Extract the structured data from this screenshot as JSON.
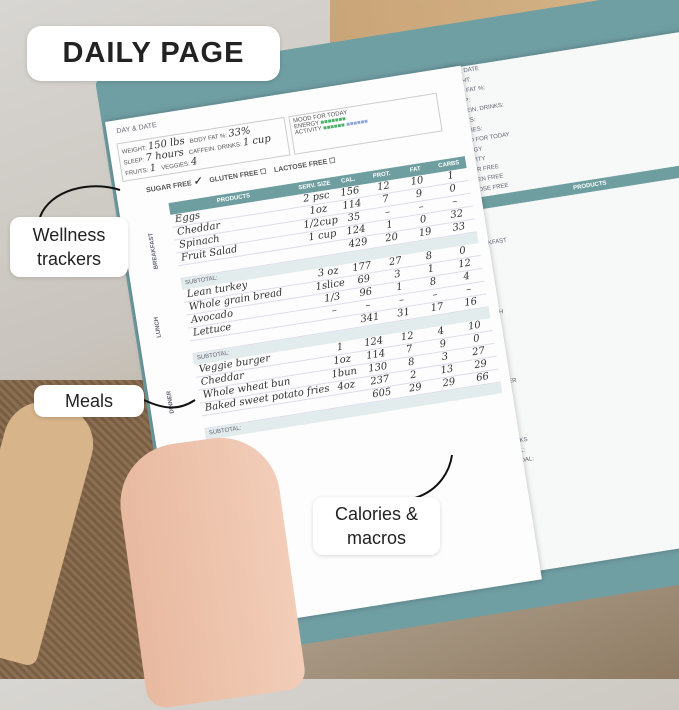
{
  "title": "DAILY PAGE",
  "callouts": {
    "wellness": "Wellness trackers",
    "meals": "Meals",
    "macros": "Calories & macros"
  },
  "planner": {
    "day_date": "DAY & DATE",
    "trackers": [
      {
        "label": "WEIGHT:",
        "value": "150 lbs"
      },
      {
        "label": "BODY FAT %:",
        "value": "33%"
      },
      {
        "label": "SLEEP:",
        "value": "7 hours"
      },
      {
        "label": "CAFFEIN. DRINKS:",
        "value": "1 cup"
      },
      {
        "label": "FRUITS:",
        "value": "1"
      },
      {
        "label": "VEGGIES:",
        "value": "4"
      }
    ],
    "mood": "MOOD FOR TODAY",
    "energy": "ENERGY",
    "activity": "ACTIVITY",
    "sugar_free": "SUGAR FREE",
    "gluten_free": "GLUTEN FREE",
    "lactose_free": "LACTOSE FREE",
    "check": "✓",
    "columns": [
      "PRODUCTS",
      "SERV. SIZE",
      "CAL.",
      "PROT.",
      "FAT",
      "CARBS"
    ],
    "meals": [
      {
        "name": "BREAKFAST",
        "rows": [
          [
            "Eggs",
            "2 psc",
            "156",
            "12",
            "10",
            "1"
          ],
          [
            "Cheddar",
            "1oz",
            "114",
            "7",
            "9",
            "0"
          ],
          [
            "Spinach",
            "1/2cup",
            "35",
            "–",
            "–",
            "–"
          ],
          [
            "Fruit Salad",
            "1 cup",
            "124",
            "1",
            "0",
            "32"
          ]
        ],
        "total": [
          "",
          "",
          "429",
          "20",
          "19",
          "33"
        ]
      },
      {
        "name": "LUNCH",
        "rows": [
          [
            "Lean turkey",
            "3 oz",
            "177",
            "27",
            "8",
            "0"
          ],
          [
            "Whole grain bread",
            "1slice",
            "69",
            "3",
            "1",
            "12"
          ],
          [
            "Avocado",
            "1/3",
            "96",
            "1",
            "8",
            "4"
          ],
          [
            "Lettuce",
            "–",
            "–",
            "–",
            "–",
            "–"
          ]
        ],
        "total": [
          "",
          "",
          "341",
          "31",
          "17",
          "16"
        ]
      },
      {
        "name": "DINNER",
        "rows": [
          [
            "Veggie burger",
            "1",
            "124",
            "12",
            "4",
            "10"
          ],
          [
            "Cheddar",
            "1oz",
            "114",
            "7",
            "9",
            "0"
          ],
          [
            "Whole wheat bun",
            "1bun",
            "130",
            "8",
            "3",
            "27"
          ],
          [
            "Baked sweet potato fries",
            "4oz",
            "237",
            "2",
            "13",
            "29"
          ]
        ],
        "total": [
          "",
          "",
          "605",
          "29",
          "29",
          "66"
        ]
      }
    ],
    "subtotal": "SUBTOTAL:",
    "right_page": {
      "labels": [
        "DAY & DATE",
        "WEIGHT:",
        "BODY FAT %:",
        "SLEEP:",
        "CAFFEIN. DRINKS:",
        "FRUITS:",
        "VEGGIES:",
        "MOOD FOR TODAY",
        "ENERGY",
        "ACTIVITY",
        "SUGAR FREE",
        "GLUTEN FREE",
        "LACTOSE FREE"
      ],
      "meals": [
        "BREAKFAST",
        "LUNCH",
        "DINNER",
        "SNACKS"
      ],
      "footer": [
        "TOTAL:",
        "VS GOAL:"
      ]
    }
  },
  "colors": {
    "teal": "#6e9ea0",
    "tracker_green": "#4caf6a",
    "activity_blue": "#8fa6d8"
  }
}
